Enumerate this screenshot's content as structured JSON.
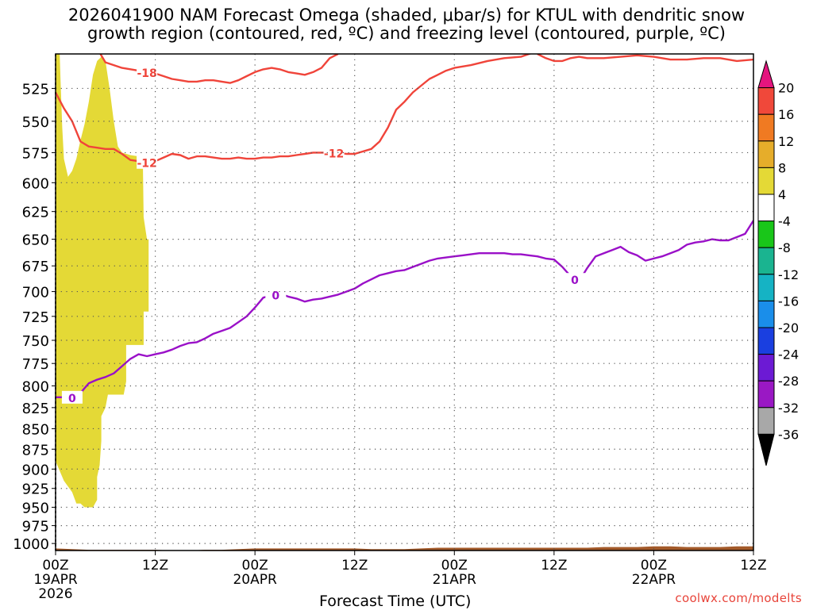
{
  "title": "2026041900 NAM Forecast Omega (shaded, μbar/s) for KTUL with dendritic snow\ngrowth region (contoured, red, ºC) and freezing level (contoured, purple, ºC)",
  "watermark": "coolwx.com/modelts",
  "chart_data": {
    "type": "area",
    "title": "2026041900 NAM Forecast Omega (shaded, μbar/s) for KTUL with dendritic snow growth region (contoured, red, ºC) and freezing level (contoured, purple, ºC)",
    "xlabel": "Forecast Time (UTC)",
    "ylabel": "",
    "x_unit": "forecast hour",
    "xlim": [
      0,
      84
    ],
    "ylim_hpa": [
      500,
      1010
    ],
    "y_scale": "log-pressure (inverted)",
    "x_ticks": [
      {
        "hour": 0,
        "label": "00Z",
        "sub": [
          "19APR",
          "2026"
        ]
      },
      {
        "hour": 12,
        "label": "12Z",
        "sub": []
      },
      {
        "hour": 24,
        "label": "00Z",
        "sub": [
          "20APR"
        ]
      },
      {
        "hour": 36,
        "label": "12Z",
        "sub": []
      },
      {
        "hour": 48,
        "label": "00Z",
        "sub": [
          "21APR"
        ]
      },
      {
        "hour": 60,
        "label": "12Z",
        "sub": []
      },
      {
        "hour": 72,
        "label": "00Z",
        "sub": [
          "22APR"
        ]
      },
      {
        "hour": 84,
        "label": "12Z",
        "sub": []
      }
    ],
    "y_ticks": [
      "525",
      "550",
      "575",
      "600",
      "625",
      "650",
      "675",
      "700",
      "725",
      "750",
      "775",
      "800",
      "825",
      "850",
      "875",
      "900",
      "925",
      "950",
      "975",
      "1000"
    ],
    "grid": true,
    "colorbar": {
      "labels": [
        "20",
        "16",
        "12",
        "8",
        "4",
        "-4",
        "-8",
        "-12",
        "-16",
        "-20",
        "-24",
        "-28",
        "-32",
        "-36"
      ],
      "colors": [
        "#e4157e",
        "#f0483a",
        "#f07a22",
        "#e6ad2a",
        "#e4d936",
        "#ffffff",
        "#19c619",
        "#1ab490",
        "#15b3c4",
        "#1a8eea",
        "#1a3fe0",
        "#6c1ad4",
        "#9a18c4",
        "#a8a8a8",
        "#000000"
      ]
    },
    "series": [
      {
        "label": "-18",
        "color": "#f0443a",
        "points": [
          [
            5.4,
            500
          ],
          [
            6,
            506
          ],
          [
            8,
            510
          ],
          [
            10,
            512
          ],
          [
            12,
            514
          ],
          [
            13,
            516
          ],
          [
            14,
            518
          ],
          [
            15,
            519
          ],
          [
            16,
            520
          ],
          [
            17,
            520
          ],
          [
            18,
            519
          ],
          [
            19,
            519
          ],
          [
            20,
            520
          ],
          [
            21,
            521
          ],
          [
            22,
            519
          ],
          [
            23,
            516
          ],
          [
            24,
            513
          ],
          [
            25,
            511
          ],
          [
            26,
            510
          ],
          [
            27,
            511
          ],
          [
            28,
            513
          ],
          [
            29,
            514
          ],
          [
            30,
            515
          ],
          [
            31,
            513
          ],
          [
            32,
            510
          ],
          [
            33,
            503
          ],
          [
            34,
            500
          ]
        ],
        "label_at": [
          11,
          513
        ]
      },
      {
        "label": "-18",
        "color": "#f0443a",
        "points": [
          [
            58,
            500
          ],
          [
            59,
            503
          ],
          [
            60,
            505
          ],
          [
            61,
            505
          ],
          [
            62,
            503
          ],
          [
            63,
            502
          ],
          [
            64,
            503
          ],
          [
            66,
            503
          ],
          [
            68,
            502
          ],
          [
            70,
            501
          ],
          [
            72,
            502
          ],
          [
            74,
            504
          ],
          [
            76,
            504
          ],
          [
            78,
            503
          ],
          [
            80,
            503
          ],
          [
            82,
            505
          ],
          [
            84,
            504
          ]
        ]
      },
      {
        "label": "-12",
        "color": "#f0443a",
        "points": [
          [
            0,
            528
          ],
          [
            1,
            540
          ],
          [
            2,
            550
          ],
          [
            3,
            566
          ],
          [
            4,
            570
          ],
          [
            5,
            571
          ],
          [
            6,
            572
          ],
          [
            7,
            572
          ],
          [
            8,
            576
          ],
          [
            9,
            581
          ],
          [
            10,
            582
          ],
          [
            11,
            584
          ],
          [
            12,
            582
          ],
          [
            13,
            579
          ],
          [
            14,
            576
          ],
          [
            15,
            577
          ],
          [
            16,
            580
          ],
          [
            17,
            578
          ],
          [
            18,
            578
          ],
          [
            19,
            579
          ],
          [
            20,
            580
          ],
          [
            21,
            580
          ],
          [
            22,
            579
          ],
          [
            23,
            580
          ],
          [
            24,
            580
          ],
          [
            25,
            579
          ],
          [
            26,
            579
          ],
          [
            27,
            578
          ],
          [
            28,
            578
          ],
          [
            29,
            577
          ],
          [
            30,
            576
          ],
          [
            31,
            575
          ],
          [
            32,
            575
          ],
          [
            33,
            575
          ],
          [
            34,
            575
          ],
          [
            35,
            576
          ],
          [
            36,
            576
          ],
          [
            37,
            574
          ],
          [
            38,
            572
          ],
          [
            39,
            566
          ],
          [
            40,
            555
          ],
          [
            41,
            541
          ],
          [
            42,
            535
          ],
          [
            43,
            528
          ],
          [
            44,
            523
          ],
          [
            45,
            518
          ],
          [
            46,
            515
          ],
          [
            47,
            512
          ],
          [
            48,
            510
          ],
          [
            50,
            508
          ],
          [
            52,
            505
          ],
          [
            54,
            503
          ],
          [
            56,
            502
          ],
          [
            58,
            498
          ]
        ],
        "label_at": [
          11,
          583
        ]
      },
      {
        "label": "0",
        "color": "#9a10c8",
        "points": [
          [
            0,
            813
          ],
          [
            2,
            813
          ],
          [
            3,
            808
          ],
          [
            4,
            797
          ],
          [
            5,
            793
          ],
          [
            6,
            790
          ],
          [
            7,
            786
          ],
          [
            8,
            778
          ],
          [
            9,
            770
          ],
          [
            10,
            765
          ],
          [
            11,
            767
          ],
          [
            12,
            765
          ],
          [
            13,
            763
          ],
          [
            14,
            760
          ],
          [
            15,
            756
          ],
          [
            16,
            753
          ],
          [
            17,
            752
          ],
          [
            18,
            748
          ],
          [
            19,
            743
          ],
          [
            20,
            740
          ],
          [
            21,
            737
          ],
          [
            22,
            731
          ],
          [
            23,
            725
          ],
          [
            24,
            716
          ],
          [
            25,
            706
          ],
          [
            26,
            704
          ],
          [
            27,
            702
          ],
          [
            28,
            705
          ],
          [
            29,
            707
          ],
          [
            30,
            710
          ],
          [
            31,
            708
          ],
          [
            32,
            707
          ],
          [
            33,
            705
          ],
          [
            34,
            703
          ],
          [
            35,
            700
          ],
          [
            36,
            697
          ],
          [
            37,
            692
          ],
          [
            38,
            688
          ],
          [
            39,
            684
          ],
          [
            40,
            682
          ],
          [
            41,
            680
          ],
          [
            42,
            679
          ],
          [
            43,
            676
          ],
          [
            44,
            673
          ],
          [
            45,
            670
          ],
          [
            46,
            668
          ],
          [
            47,
            667
          ],
          [
            48,
            666
          ],
          [
            49,
            665
          ],
          [
            50,
            664
          ],
          [
            51,
            663
          ],
          [
            52,
            663
          ],
          [
            53,
            663
          ],
          [
            54,
            663
          ],
          [
            55,
            664
          ],
          [
            56,
            664
          ],
          [
            57,
            665
          ],
          [
            58,
            666
          ],
          [
            59,
            668
          ],
          [
            60,
            669
          ],
          [
            61,
            676
          ],
          [
            62,
            685
          ],
          [
            63,
            690
          ],
          [
            64,
            677
          ],
          [
            65,
            666
          ],
          [
            66,
            663
          ],
          [
            67,
            660
          ],
          [
            68,
            657
          ],
          [
            69,
            662
          ],
          [
            70,
            665
          ],
          [
            71,
            670
          ],
          [
            72,
            668
          ],
          [
            73,
            666
          ],
          [
            74,
            663
          ],
          [
            75,
            660
          ],
          [
            76,
            655
          ],
          [
            77,
            653
          ],
          [
            78,
            652
          ],
          [
            79,
            650
          ],
          [
            80,
            651
          ],
          [
            81,
            651
          ],
          [
            82,
            648
          ],
          [
            83,
            645
          ],
          [
            84,
            633
          ]
        ],
        "label_at": [
          2,
          813
        ]
      }
    ],
    "shaded_regions": [
      {
        "label": "4",
        "color": "#e4d936",
        "points": [
          [
            0,
            500
          ],
          [
            0.5,
            500
          ],
          [
            0.6,
            520
          ],
          [
            0.8,
            555
          ],
          [
            1,
            580
          ],
          [
            1.5,
            595
          ],
          [
            2,
            590
          ],
          [
            2.5,
            580
          ],
          [
            3,
            565
          ],
          [
            3.5,
            552
          ],
          [
            4,
            535
          ],
          [
            4.5,
            515
          ],
          [
            5,
            505
          ],
          [
            5.5,
            502
          ],
          [
            6,
            505
          ],
          [
            6.5,
            525
          ],
          [
            7,
            550
          ],
          [
            7.5,
            570
          ],
          [
            8,
            575
          ],
          [
            9,
            577
          ],
          [
            10,
            578
          ],
          [
            10.5,
            580
          ],
          [
            10.6,
            630
          ],
          [
            11,
            650
          ],
          [
            11.2,
            650
          ],
          [
            11.2,
            720
          ],
          [
            10.6,
            720
          ],
          [
            10.6,
            755
          ],
          [
            8.5,
            755
          ],
          [
            8.5,
            795
          ],
          [
            8.2,
            810
          ],
          [
            6.3,
            810
          ],
          [
            6,
            825
          ],
          [
            5.5,
            835
          ],
          [
            5.5,
            865
          ],
          [
            5.3,
            895
          ],
          [
            5,
            910
          ],
          [
            5,
            940
          ],
          [
            4.5,
            950
          ],
          [
            3.5,
            950
          ],
          [
            3,
            945
          ],
          [
            2.5,
            945
          ],
          [
            2,
            930
          ],
          [
            1,
            915
          ],
          [
            0,
            890
          ]
        ]
      },
      {
        "label": "terrain",
        "color": "#a35a2a",
        "points": [
          [
            0,
            1007
          ],
          [
            2,
            1008
          ],
          [
            4,
            1009
          ],
          [
            8,
            1009
          ],
          [
            12,
            1009
          ],
          [
            14,
            1010
          ],
          [
            16,
            1010
          ],
          [
            18,
            1009
          ],
          [
            20,
            1009
          ],
          [
            22,
            1008
          ],
          [
            24,
            1007
          ],
          [
            36,
            1007
          ],
          [
            38,
            1008
          ],
          [
            42,
            1008
          ],
          [
            44,
            1007
          ],
          [
            46,
            1006
          ],
          [
            48,
            1006
          ],
          [
            56,
            1006
          ],
          [
            64,
            1006
          ],
          [
            66,
            1005
          ],
          [
            70,
            1005
          ],
          [
            72,
            1004
          ],
          [
            74,
            1004
          ],
          [
            76,
            1005
          ],
          [
            80,
            1005
          ],
          [
            82,
            1004
          ],
          [
            84,
            1004
          ]
        ]
      }
    ]
  }
}
